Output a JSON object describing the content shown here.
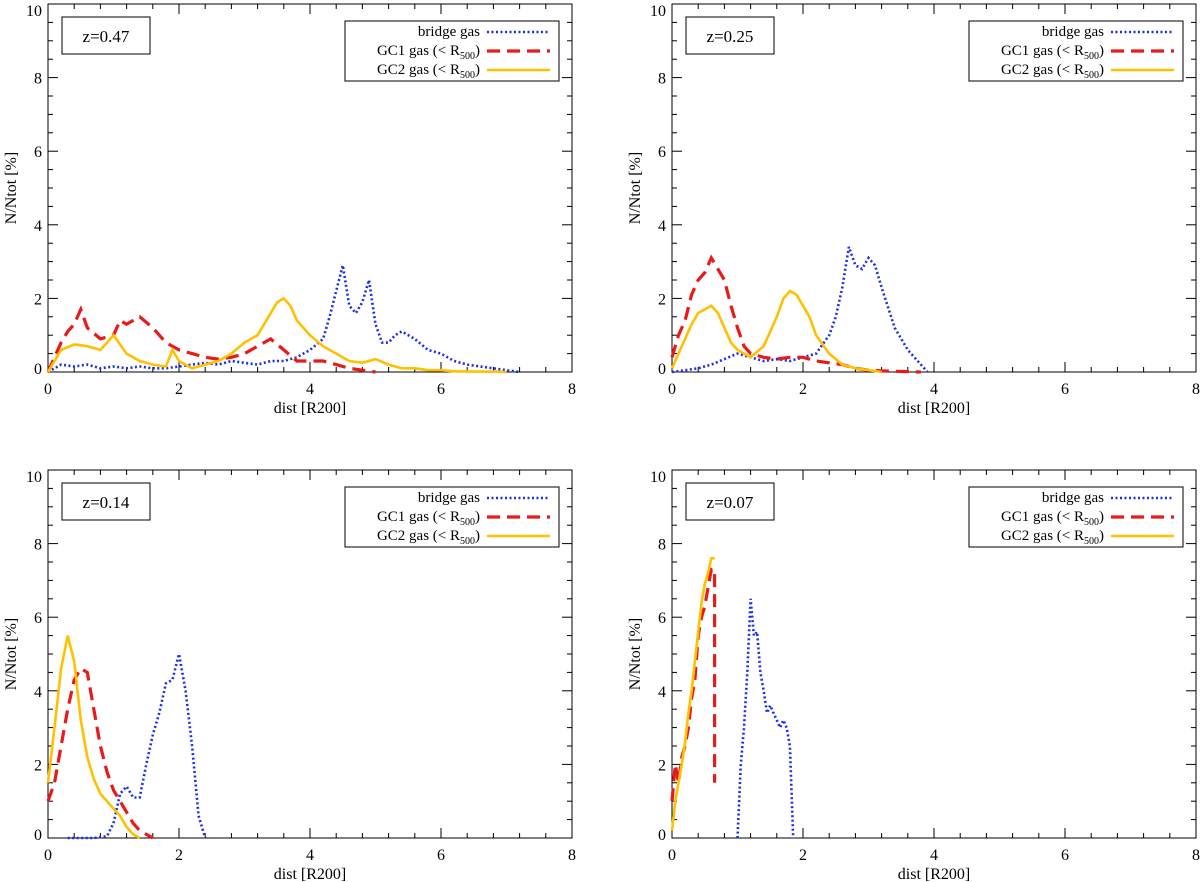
{
  "figure": {
    "xlabel": "dist [R200]",
    "ylabel": "N/Ntot [%]",
    "xlim": [
      0,
      8
    ],
    "ylim": [
      0,
      10
    ],
    "xticks": [
      "0",
      "2",
      "4",
      "6",
      "8"
    ],
    "yticks": [
      "0",
      "2",
      "4",
      "6",
      "8",
      "10"
    ],
    "legend": [
      {
        "prefix": "bridge gas",
        "sub": "",
        "suffix": ""
      },
      {
        "prefix": "GC1 gas (< R",
        "sub": "500",
        "suffix": ")"
      },
      {
        "prefix": "GC2 gas (< R",
        "sub": "500",
        "suffix": ")"
      }
    ],
    "colors": {
      "bridge": "#1a2ee8",
      "gc1": "#e81a1a",
      "gc2": "#ffc000"
    }
  },
  "chart_data": [
    {
      "type": "line",
      "title": "z=0.47",
      "xlabel": "dist [R200]",
      "ylabel": "N/Ntot [%]",
      "xlim": [
        0,
        8
      ],
      "ylim": [
        0,
        10
      ],
      "legend_position": "top-right",
      "series": [
        {
          "name": "bridge gas",
          "style": "dotted",
          "x": [
            0,
            0.2,
            0.4,
            0.6,
            0.8,
            1.0,
            1.2,
            1.4,
            1.6,
            1.8,
            2.0,
            2.2,
            2.4,
            2.6,
            2.8,
            3.0,
            3.2,
            3.4,
            3.6,
            3.8,
            4.0,
            4.2,
            4.3,
            4.4,
            4.5,
            4.6,
            4.7,
            4.8,
            4.9,
            5.0,
            5.1,
            5.2,
            5.3,
            5.4,
            5.5,
            5.6,
            5.8,
            6.0,
            6.2,
            6.4,
            6.6,
            6.8,
            7.0,
            7.2
          ],
          "y": [
            0,
            0.2,
            0.15,
            0.2,
            0.1,
            0.15,
            0.1,
            0.15,
            0.1,
            0.1,
            0.15,
            0.2,
            0.25,
            0.2,
            0.3,
            0.25,
            0.2,
            0.3,
            0.3,
            0.4,
            0.6,
            0.9,
            1.5,
            2.2,
            2.9,
            1.8,
            1.6,
            1.9,
            2.5,
            1.3,
            0.8,
            0.8,
            1.0,
            1.1,
            1.0,
            0.9,
            0.6,
            0.5,
            0.3,
            0.2,
            0.15,
            0.1,
            0.05,
            0
          ]
        },
        {
          "name": "GC1 gas (< R500)",
          "style": "dashed",
          "x": [
            0,
            0.1,
            0.2,
            0.3,
            0.4,
            0.5,
            0.6,
            0.8,
            1.0,
            1.1,
            1.2,
            1.4,
            1.6,
            1.8,
            2.0,
            2.2,
            2.4,
            2.6,
            2.8,
            3.0,
            3.2,
            3.4,
            3.6,
            3.8,
            4.0,
            4.2,
            4.4,
            4.6,
            4.8,
            5.0
          ],
          "y": [
            0,
            0.4,
            0.8,
            1.1,
            1.3,
            1.7,
            1.2,
            0.9,
            1.0,
            1.4,
            1.3,
            1.5,
            1.2,
            0.8,
            0.6,
            0.5,
            0.4,
            0.35,
            0.4,
            0.5,
            0.7,
            0.9,
            0.6,
            0.3,
            0.3,
            0.3,
            0.2,
            0.1,
            0.05,
            0
          ]
        },
        {
          "name": "GC2 gas (< R500)",
          "style": "solid",
          "x": [
            0,
            0.2,
            0.4,
            0.6,
            0.8,
            1.0,
            1.2,
            1.4,
            1.6,
            1.8,
            1.9,
            2.0,
            2.2,
            2.4,
            2.6,
            2.8,
            3.0,
            3.2,
            3.4,
            3.5,
            3.6,
            3.7,
            3.8,
            4.0,
            4.2,
            4.4,
            4.6,
            4.8,
            5.0,
            5.2,
            5.4,
            5.6,
            5.8,
            6.0,
            6.2,
            6.5,
            6.8,
            7.0
          ],
          "y": [
            0,
            0.6,
            0.75,
            0.7,
            0.6,
            1.0,
            0.5,
            0.3,
            0.2,
            0.15,
            0.6,
            0.3,
            0.1,
            0.2,
            0.3,
            0.5,
            0.8,
            1.0,
            1.6,
            1.9,
            2.0,
            1.8,
            1.4,
            1.0,
            0.7,
            0.5,
            0.3,
            0.25,
            0.35,
            0.2,
            0.1,
            0.1,
            0.05,
            0.05,
            0.02,
            0.01,
            0.01,
            0
          ]
        }
      ]
    },
    {
      "type": "line",
      "title": "z=0.25",
      "xlabel": "dist [R200]",
      "ylabel": "N/Ntot [%]",
      "xlim": [
        0,
        8
      ],
      "ylim": [
        0,
        10
      ],
      "legend_position": "top-right",
      "series": [
        {
          "name": "bridge gas",
          "style": "dotted",
          "x": [
            0,
            0.2,
            0.4,
            0.6,
            0.8,
            1.0,
            1.2,
            1.4,
            1.6,
            1.8,
            2.0,
            2.2,
            2.4,
            2.5,
            2.6,
            2.7,
            2.8,
            2.9,
            3.0,
            3.1,
            3.2,
            3.4,
            3.6,
            3.8,
            3.9
          ],
          "y": [
            0,
            0.05,
            0.1,
            0.2,
            0.35,
            0.5,
            0.4,
            0.3,
            0.35,
            0.3,
            0.4,
            0.5,
            1.0,
            1.5,
            2.3,
            3.4,
            2.9,
            2.8,
            3.1,
            2.9,
            2.3,
            1.2,
            0.6,
            0.2,
            0
          ]
        },
        {
          "name": "GC1 gas (< R500)",
          "style": "dashed",
          "x": [
            0,
            0.1,
            0.2,
            0.3,
            0.4,
            0.5,
            0.6,
            0.7,
            0.8,
            0.9,
            1.0,
            1.1,
            1.2,
            1.4,
            1.6,
            1.8,
            2.0,
            2.2,
            2.4,
            2.6,
            2.8,
            3.0,
            3.2,
            3.4,
            3.6,
            3.8
          ],
          "y": [
            0.4,
            1.0,
            1.4,
            2.1,
            2.5,
            2.7,
            3.1,
            2.8,
            2.5,
            1.8,
            1.2,
            0.7,
            0.5,
            0.4,
            0.35,
            0.4,
            0.4,
            0.3,
            0.25,
            0.2,
            0.1,
            0.05,
            0.03,
            0.02,
            0.01,
            0
          ]
        },
        {
          "name": "GC2 gas (< R500)",
          "style": "solid",
          "x": [
            0,
            0.1,
            0.2,
            0.3,
            0.4,
            0.5,
            0.6,
            0.7,
            0.8,
            0.9,
            1.0,
            1.2,
            1.4,
            1.6,
            1.7,
            1.8,
            1.9,
            2.0,
            2.1,
            2.2,
            2.4,
            2.6,
            2.8,
            3.0,
            3.2
          ],
          "y": [
            0.1,
            0.5,
            0.9,
            1.3,
            1.6,
            1.7,
            1.8,
            1.6,
            1.2,
            0.8,
            0.6,
            0.4,
            0.7,
            1.5,
            2.0,
            2.2,
            2.1,
            1.8,
            1.5,
            1.0,
            0.5,
            0.2,
            0.1,
            0.05,
            0
          ]
        }
      ]
    },
    {
      "type": "line",
      "title": "z=0.14",
      "xlabel": "dist [R200]",
      "ylabel": "N/Ntot [%]",
      "xlim": [
        0,
        8
      ],
      "ylim": [
        0,
        10
      ],
      "legend_position": "top-right",
      "series": [
        {
          "name": "bridge gas",
          "style": "dotted",
          "x": [
            0.3,
            0.5,
            0.7,
            0.9,
            1.0,
            1.1,
            1.2,
            1.3,
            1.4,
            1.5,
            1.6,
            1.7,
            1.8,
            1.9,
            2.0,
            2.1,
            2.2,
            2.3,
            2.4
          ],
          "y": [
            0,
            0,
            0,
            0.05,
            0.4,
            1.2,
            1.4,
            1.1,
            1.1,
            2.0,
            2.8,
            3.4,
            4.2,
            4.3,
            5.0,
            4.0,
            2.5,
            0.6,
            0
          ]
        },
        {
          "name": "GC1 gas (< R500)",
          "style": "dashed",
          "x": [
            0,
            0.1,
            0.2,
            0.3,
            0.4,
            0.5,
            0.6,
            0.7,
            0.8,
            0.9,
            1.0,
            1.1,
            1.2,
            1.3,
            1.4,
            1.5,
            1.6
          ],
          "y": [
            1.0,
            1.5,
            2.5,
            3.5,
            4.3,
            4.6,
            4.5,
            3.5,
            2.5,
            1.8,
            1.3,
            1.0,
            0.7,
            0.4,
            0.2,
            0.1,
            0
          ]
        },
        {
          "name": "GC2 gas (< R500)",
          "style": "solid",
          "x": [
            0,
            0.1,
            0.2,
            0.3,
            0.4,
            0.5,
            0.6,
            0.7,
            0.8,
            0.9,
            1.0,
            1.1,
            1.2,
            1.3,
            1.4
          ],
          "y": [
            1.5,
            3.0,
            4.6,
            5.5,
            4.8,
            3.2,
            2.2,
            1.6,
            1.2,
            1.0,
            0.8,
            0.6,
            0.3,
            0.1,
            0
          ]
        }
      ]
    },
    {
      "type": "line",
      "title": "z=0.07",
      "xlabel": "dist [R200]",
      "ylabel": "N/Ntot [%]",
      "xlim": [
        0,
        8
      ],
      "ylim": [
        0,
        10
      ],
      "legend_position": "top-right",
      "series": [
        {
          "name": "bridge gas",
          "style": "dotted",
          "x": [
            1.0,
            1.05,
            1.1,
            1.15,
            1.2,
            1.25,
            1.3,
            1.35,
            1.4,
            1.45,
            1.5,
            1.55,
            1.6,
            1.65,
            1.7,
            1.75,
            1.8,
            1.85
          ],
          "y": [
            0,
            2.0,
            3.0,
            4.5,
            6.5,
            5.5,
            5.6,
            4.5,
            4.0,
            3.4,
            3.6,
            3.4,
            3.2,
            3.0,
            3.2,
            3.0,
            2.5,
            0
          ]
        },
        {
          "name": "GC1 gas (< R500)",
          "style": "dashed",
          "x": [
            0,
            0.05,
            0.1,
            0.15,
            0.2,
            0.25,
            0.3,
            0.35,
            0.4,
            0.45,
            0.5,
            0.55,
            0.6,
            0.65,
            0.65
          ],
          "y": [
            1.0,
            2.0,
            1.5,
            2.2,
            2.5,
            3.0,
            3.8,
            4.3,
            5.5,
            6.0,
            6.3,
            6.8,
            7.3,
            7.3,
            1.5
          ]
        },
        {
          "name": "GC2 gas (< R500)",
          "style": "solid",
          "x": [
            0,
            0.05,
            0.1,
            0.15,
            0.2,
            0.25,
            0.3,
            0.35,
            0.4,
            0.45,
            0.5,
            0.55,
            0.6,
            0.65
          ],
          "y": [
            0.2,
            1.0,
            1.5,
            2.0,
            2.6,
            3.4,
            4.0,
            4.8,
            5.6,
            6.4,
            6.9,
            7.2,
            7.6,
            7.6
          ]
        }
      ]
    }
  ]
}
